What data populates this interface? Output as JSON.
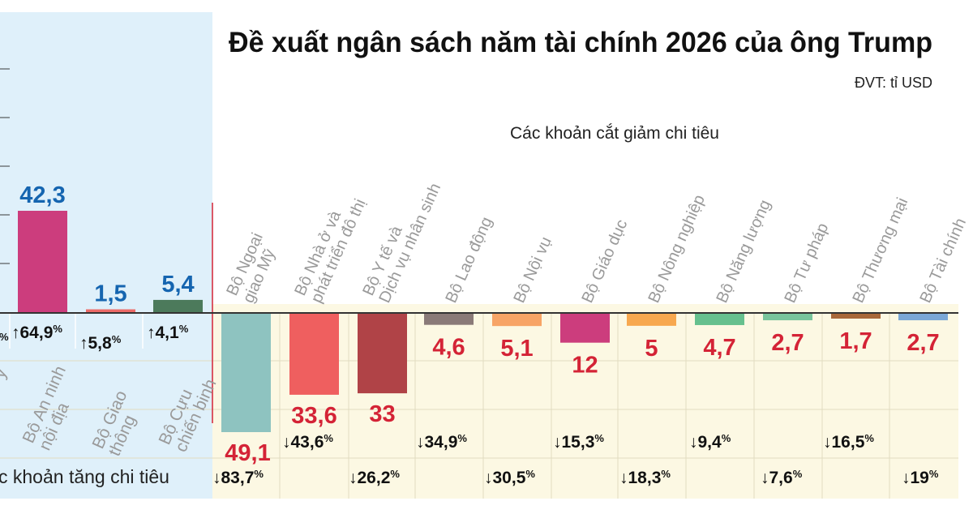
{
  "title": "Đề xuất ngân sách năm tài chính 2026 của ông Trump",
  "unit": "ĐVT: tỉ USD",
  "section_decrease_label": "Các khoản cắt giảm chi tiêu",
  "section_increase_label": "c khoản tăng chi tiêu",
  "colors": {
    "increase_panel": "#dff0fa",
    "decrease_panel": "#fcf8e3",
    "increase_value": "#1565b0",
    "decrease_value": "#d42336",
    "category_label": "#9a9a9a",
    "baseline": "#333333",
    "divider": "#d42336"
  },
  "chart_data": {
    "type": "bar",
    "unit": "tỉ USD",
    "series": [
      {
        "name": "Các khoản tăng chi tiêu",
        "categories": [
          "Bộ An ninh nội địa",
          "Bộ Giao thông",
          "Bộ Cựu chiến binh"
        ],
        "values": [
          42.3,
          1.5,
          5.4
        ],
        "value_labels": [
          "42,3",
          "1,5",
          "5,4"
        ],
        "pct_labels": [
          "64,9",
          "5,8",
          "4,1"
        ],
        "colors": [
          "#cc3d7d",
          "#ec6a67",
          "#4c7a5b"
        ]
      },
      {
        "name": "Các khoản cắt giảm chi tiêu",
        "categories": [
          "Bộ Ngoại giao Mỹ",
          "Bộ Nhà ở và phát triển đô thị",
          "Bộ Y tế và Dịch vụ nhân sinh",
          "Bộ Lao động",
          "Bộ Nội vụ",
          "Bộ Giáo dục",
          "Bộ Nông nghiệp",
          "Bộ Năng lượng",
          "Bộ Tư pháp",
          "Bộ Thương mại",
          "Bộ Tài chính"
        ],
        "values": [
          -49.1,
          -33.6,
          -33,
          -4.6,
          -5.1,
          -12,
          -5,
          -4.7,
          -2.7,
          -1.7,
          -2.7
        ],
        "value_labels": [
          "49,1",
          "33,6",
          "33",
          "4,6",
          "5,1",
          "12",
          "5",
          "4,7",
          "2,7",
          "1,7",
          "2,7"
        ],
        "pct_labels": [
          "83,7",
          "43,6",
          "26,2",
          "34,9",
          "30,5",
          "15,3",
          "18,3",
          "9,4",
          "7,6",
          "16,5",
          "19"
        ],
        "colors": [
          "#8ec3c0",
          "#ef5f5f",
          "#b04347",
          "#8a7a78",
          "#f7a466",
          "#cc3d7d",
          "#f7a84f",
          "#66c08e",
          "#78c49c",
          "#a8683a",
          "#7ba7d6"
        ]
      }
    ],
    "increase_pct_partial": [
      "%"
    ],
    "increase_category_partial": [
      "y"
    ],
    "pct_suffix": "%",
    "grid": true
  }
}
